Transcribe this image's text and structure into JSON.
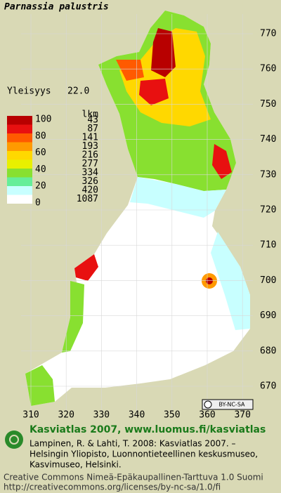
{
  "title": "Parnassia palustris",
  "frequency": {
    "label": "Yleisyys",
    "value": "22.0"
  },
  "legend": {
    "scale": [
      100,
      80,
      60,
      40,
      20,
      0
    ],
    "count_header": "lkm",
    "counts": [
      43,
      87,
      141,
      193,
      216,
      277,
      334,
      326,
      420,
      1087
    ],
    "colors": [
      "#b80000",
      "#e81010",
      "#ff5a00",
      "#ff9a00",
      "#ffd800",
      "#e8f000",
      "#88e030",
      "#66ee99",
      "#c8ffff",
      "#ffffff"
    ]
  },
  "map": {
    "yticks": [
      770,
      760,
      750,
      740,
      730,
      720,
      710,
      700,
      690,
      680,
      670
    ],
    "xticks": [
      310,
      320,
      330,
      340,
      350,
      360,
      370
    ]
  },
  "license_badge": "BY-NC-SA",
  "footer": {
    "heading": "Kasviatlas 2007, www.luomus.fi/kasviatlas",
    "citation": [
      "Lampinen, R. & Lahti, T. 2008: Kasviatlas 2007. –",
      "Helsingin Yliopisto, Luonnontieteellinen keskusmuseo,",
      "Kasvimuseo, Helsinki."
    ],
    "license": [
      "Creative Commons Nimeä-Epäkaupallinen-Tarttuva 1.0 Suomi",
      "http://creativecommons.org/licenses/by-nc-sa/1.0/fi"
    ]
  }
}
